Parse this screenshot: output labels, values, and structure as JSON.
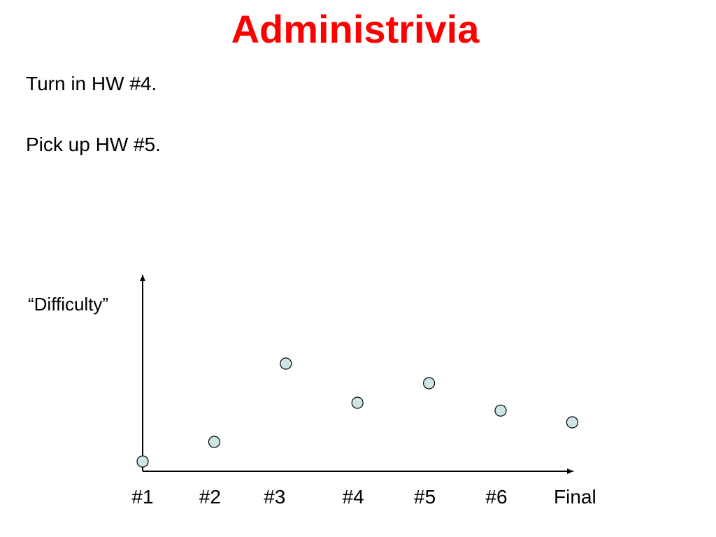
{
  "slide": {
    "title": "Administrivia",
    "lines": [
      "Turn in HW #4.",
      "Pick up HW #5."
    ]
  },
  "colors": {
    "title": "#ff0000",
    "point_fill": "#cde5e5",
    "point_stroke": "#000000"
  },
  "chart_data": {
    "type": "scatter",
    "ylabel": "“Difficulty”",
    "xlabel": "",
    "categories": [
      "#1",
      "#2",
      "#3",
      "#4",
      "#5",
      "#6",
      "Final"
    ],
    "values": [
      0.5,
      1.5,
      5.5,
      3.5,
      4.5,
      3.1,
      2.5
    ],
    "ylim": [
      0,
      10
    ],
    "y_ticks_shown": false,
    "grid": false,
    "legend": "none"
  }
}
